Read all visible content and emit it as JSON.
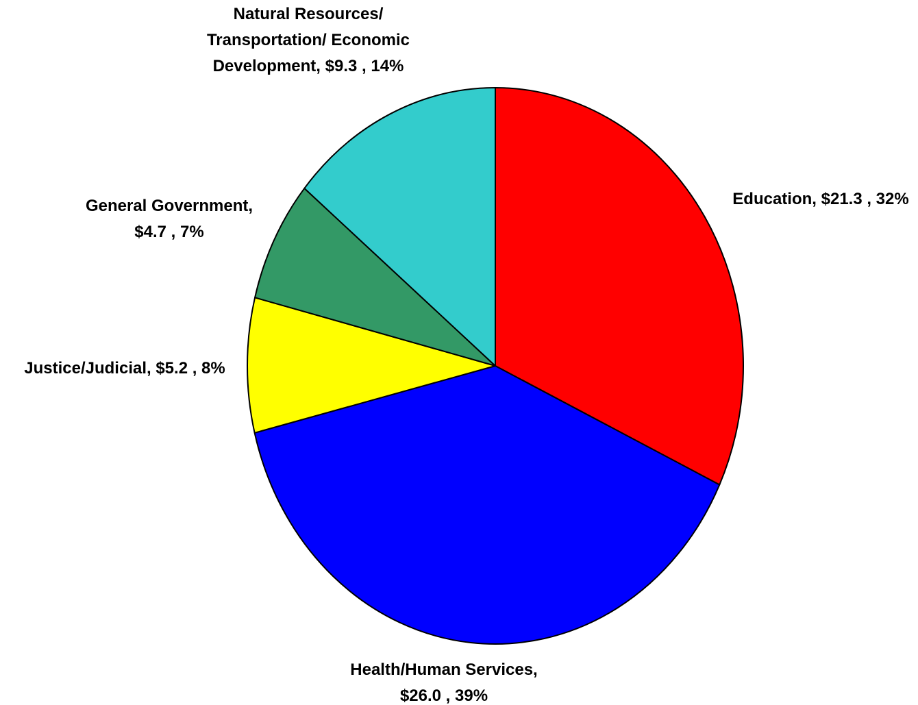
{
  "chart_data": {
    "type": "pie",
    "slices": [
      {
        "category": "Education",
        "value": 21.3,
        "percent": 32,
        "color": "#ff0000",
        "label_lines": [
          "Education, $21.3 , 32%"
        ]
      },
      {
        "category": "Health/Human Services",
        "value": 26.0,
        "percent": 39,
        "color": "#0000ff",
        "label_lines": [
          "Health/Human Services,",
          "$26.0 , 39%"
        ]
      },
      {
        "category": "Justice/Judicial",
        "value": 5.2,
        "percent": 8,
        "color": "#ffff00",
        "label_lines": [
          "Justice/Judicial, $5.2 , 8%"
        ]
      },
      {
        "category": "General Government",
        "value": 4.7,
        "percent": 7,
        "color": "#339966",
        "label_lines": [
          "General Government,",
          "$4.7 , 7%"
        ]
      },
      {
        "category": "Natural Resources/ Transportation/ Economic Development",
        "value": 9.3,
        "percent": 14,
        "color": "#33cccc",
        "label_lines": [
          "Natural Resources/",
          "Transportation/ Economic",
          "Development, $9.3 , 14%"
        ]
      }
    ],
    "start": "12 o'clock",
    "direction": "clockwise",
    "outline_color": "#000000"
  }
}
